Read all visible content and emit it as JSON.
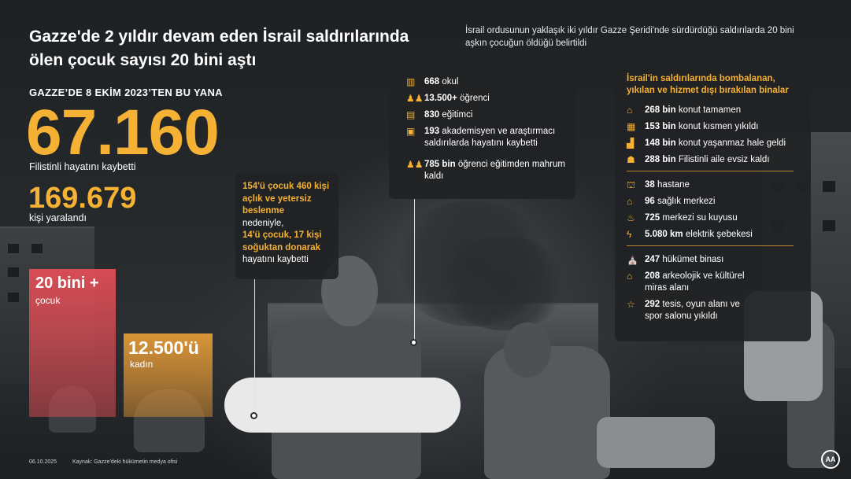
{
  "title": "Gazze'de 2 yıldır devam eden İsrail saldırılarında ölen çocuk sayısı 20 bini aştı",
  "intro": "İsrail ordusunun yaklaşık iki yıldır Gazze Şeridi'nde sürdürdüğü saldırılarda 20 bini aşkın çocuğun öldüğü belirtildi",
  "since": "GAZZE’DE 8 EKİM 2023’TEN BU YANA",
  "killed": {
    "value": "67.160",
    "label": "Filistinli hayatını kaybetti"
  },
  "injured": {
    "value": "169.679",
    "label": "kişi yaralandı"
  },
  "children": {
    "value": "20 bini +",
    "label": "çocuk"
  },
  "women": {
    "value": "12.500'ü",
    "label": "kadın"
  },
  "famine": {
    "p1": "154'ü çocuk 460 kişi açlık ve yetersiz beslenme",
    "p2": "nedeniyle,",
    "p3": "14'ü çocuk, 17 kişi soğuktan donarak",
    "p4": "hayatını kaybetti"
  },
  "education": [
    {
      "icon": "school-icon",
      "num": "668",
      "text": "okul"
    },
    {
      "icon": "students-icon",
      "num": "13.500+",
      "text": "öğrenci"
    },
    {
      "icon": "teacher-icon",
      "num": "830",
      "text": "eğitimci"
    },
    {
      "icon": "academic-icon",
      "num": "193",
      "text": "akademisyen ve araştırmacı saldırılarda hayatını kaybetti"
    },
    {
      "icon": "students-icon",
      "num": "785 bin",
      "text": "öğrenci eğitimden mahrum kaldı"
    }
  ],
  "infra_title": "İsrail'in saldırılarında bombalanan, yıkılan ve hizmet dışı bırakılan binalar",
  "housing": [
    {
      "icon": "destroyed-house-icon",
      "num": "268 bin",
      "text": "konut tamamen"
    },
    {
      "icon": "damaged-house-icon",
      "num": "153 bin",
      "text": "konut kısmen yıkıldı"
    },
    {
      "icon": "uninhabitable-house-icon",
      "num": "148 bin",
      "text": "konut yaşanmaz hale geldi"
    },
    {
      "icon": "homeless-family-icon",
      "num": "288 bin",
      "text": "Filistinli aile evsiz kaldı"
    }
  ],
  "services": [
    {
      "icon": "hospital-icon",
      "num": "38",
      "text": "hastane"
    },
    {
      "icon": "health-center-icon",
      "num": "96",
      "text": "sağlık merkezi"
    },
    {
      "icon": "water-well-icon",
      "num": "725",
      "text": "merkezi su kuyusu"
    },
    {
      "icon": "power-line-icon",
      "num": "5.080 km",
      "text": "elektrik şebekesi"
    }
  ],
  "public": [
    {
      "icon": "government-building-icon",
      "num": "247",
      "text": "hükümet binası"
    },
    {
      "icon": "heritage-site-icon",
      "num": "208",
      "text": "arkeolojik ve kültürel miras alanı"
    },
    {
      "icon": "sports-facility-icon",
      "num": "292",
      "text": "tesis, oyun alanı ve spor salonu yıkıldı"
    }
  ],
  "footer": {
    "date": "06.10.2025",
    "source": "Kaynak: Gazze'deki hükümetin medya ofisi",
    "logo": "AA"
  }
}
